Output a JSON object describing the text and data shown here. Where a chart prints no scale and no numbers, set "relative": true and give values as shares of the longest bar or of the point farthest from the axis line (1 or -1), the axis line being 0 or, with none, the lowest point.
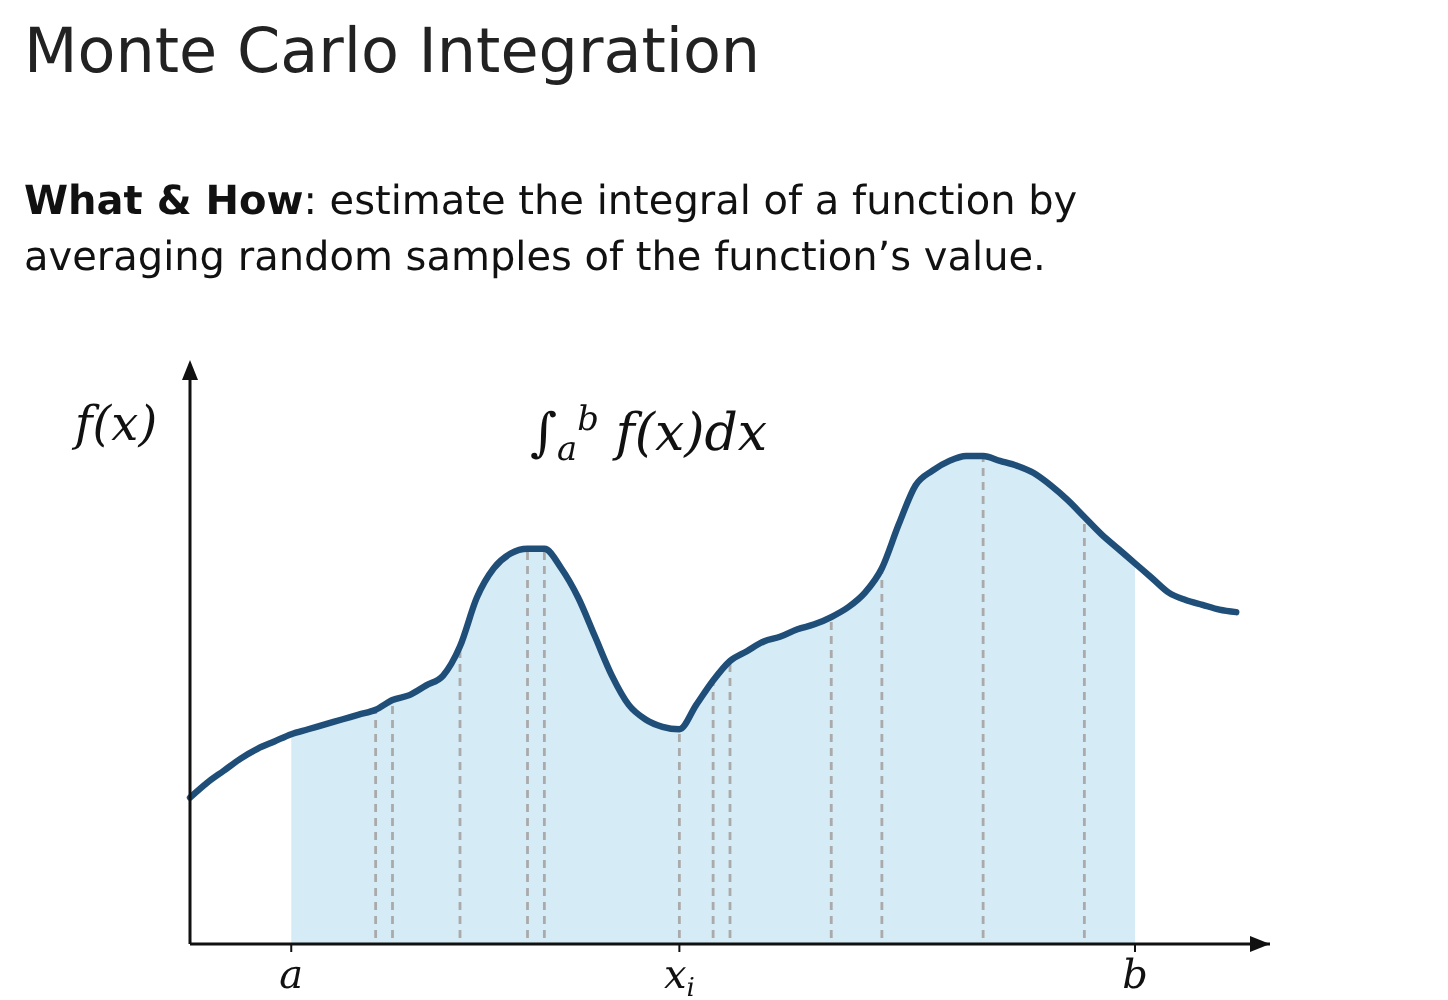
{
  "chart_data": {
    "type": "line",
    "relative": true,
    "title": "Monte Carlo Integration",
    "subtitle": "What & How: estimate the integral of a function by averaging random samples of the function’s value.",
    "ylabel": "f(x)",
    "annotations": [
      "∫$_{a}$$^{b}$ f(x)dx"
    ],
    "categories": [
      null,
      null,
      null,
      null,
      null,
      null,
      "a",
      null,
      null,
      null,
      null,
      null,
      null,
      null,
      null,
      null,
      null,
      null,
      null,
      null,
      null,
      null,
      null,
      null,
      null,
      null,
      null,
      null,
      null,
      "x$_{i}$",
      null,
      null,
      null,
      null,
      null,
      null,
      null,
      null,
      null,
      null,
      null,
      null,
      null,
      null,
      null,
      null,
      null,
      null,
      null,
      null,
      null,
      null,
      null,
      null,
      null,
      null,
      "b",
      null,
      null,
      null,
      null,
      null,
      null,
      null,
      null
    ],
    "series": [
      {
        "type": "area",
        "color": "#d5ebf5",
        "values": [
          null,
          null,
          null,
          null,
          null,
          null,
          0.43,
          0.44,
          0.45,
          0.46,
          0.47,
          0.48,
          0.5,
          0.51,
          0.53,
          0.55,
          0.61,
          0.71,
          0.77,
          0.8,
          0.81,
          0.81,
          0.77,
          0.71,
          0.63,
          0.55,
          0.49,
          0.46,
          0.445,
          0.44,
          0.49,
          0.54,
          0.58,
          0.6,
          0.62,
          0.63,
          0.645,
          0.655,
          0.67,
          0.69,
          0.72,
          0.77,
          0.86,
          0.94,
          0.97,
          0.99,
          1.0,
          1.0,
          0.99,
          0.98,
          0.965,
          0.94,
          0.91,
          0.875,
          0.84,
          0.81,
          0.78,
          null,
          null,
          null,
          null,
          null,
          null,
          null,
          null
        ]
      },
      {
        "type": "bar",
        "color": "#aaaaaa",
        "line_style": "dashed",
        "values": [
          null,
          null,
          null,
          null,
          null,
          null,
          null,
          null,
          null,
          null,
          null,
          0.48,
          0.5,
          null,
          null,
          null,
          0.61,
          null,
          null,
          null,
          0.81,
          0.81,
          null,
          null,
          null,
          null,
          null,
          null,
          null,
          0.44,
          null,
          0.54,
          0.58,
          null,
          null,
          null,
          null,
          null,
          0.67,
          null,
          null,
          0.77,
          null,
          null,
          null,
          null,
          null,
          1.0,
          null,
          null,
          null,
          null,
          null,
          0.875,
          null,
          null,
          null,
          null,
          null,
          null,
          null,
          null,
          null,
          null,
          null
        ]
      },
      {
        "color": "#1f4e79",
        "values": [
          0.3,
          0.33,
          0.355,
          0.38,
          0.4,
          0.415,
          0.43,
          0.44,
          0.45,
          0.46,
          0.47,
          0.48,
          0.5,
          0.51,
          0.53,
          0.55,
          0.61,
          0.71,
          0.77,
          0.8,
          0.81,
          0.81,
          0.77,
          0.71,
          0.63,
          0.55,
          0.49,
          0.46,
          0.445,
          0.44,
          0.49,
          0.54,
          0.58,
          0.6,
          0.62,
          0.63,
          0.645,
          0.655,
          0.67,
          0.69,
          0.72,
          0.77,
          0.86,
          0.94,
          0.97,
          0.99,
          1.0,
          1.0,
          0.99,
          0.98,
          0.965,
          0.94,
          0.91,
          0.875,
          0.84,
          0.81,
          0.78,
          0.75,
          0.72,
          0.705,
          0.695,
          0.685,
          0.68,
          null,
          null
        ]
      }
    ]
  }
}
